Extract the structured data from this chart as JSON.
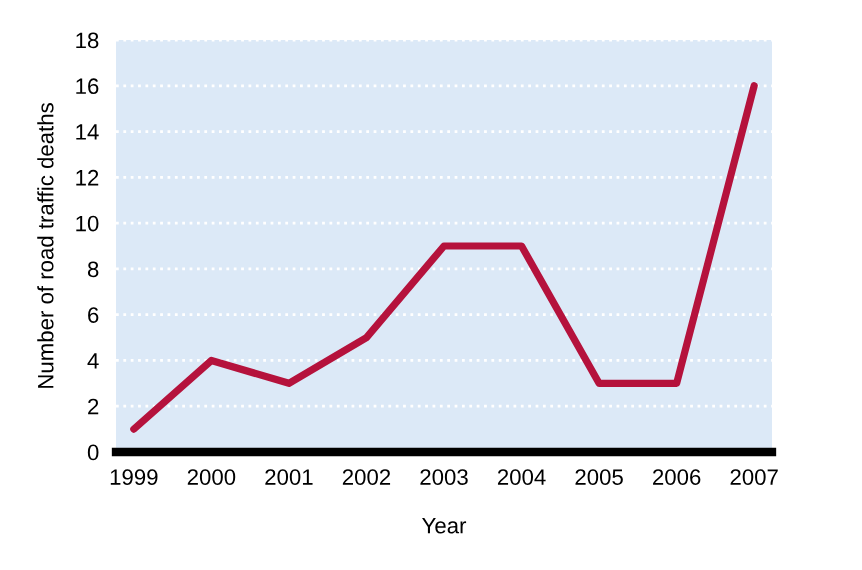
{
  "chart_data": {
    "type": "line",
    "xlabel": "Year",
    "ylabel": "Number of road traffic deaths",
    "categories": [
      "1999",
      "2000",
      "2001",
      "2002",
      "2003",
      "2004",
      "2005",
      "2006",
      "2007"
    ],
    "series": [
      {
        "color": "#b5123c",
        "values": [
          1,
          4,
          3,
          5,
          9,
          9,
          3,
          3,
          16
        ]
      }
    ],
    "ylim": [
      0,
      18
    ],
    "yticks": [
      0,
      2,
      4,
      6,
      8,
      10,
      12,
      14,
      16,
      18
    ],
    "grid": "y",
    "line_style": "solid",
    "marker": "none"
  }
}
